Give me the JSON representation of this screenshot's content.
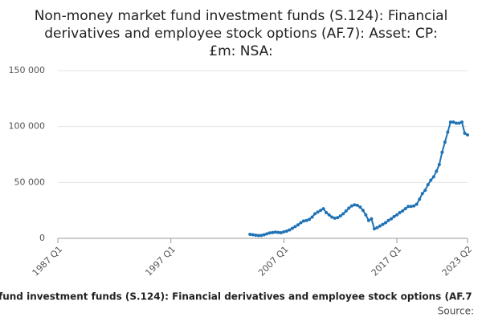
{
  "chart_data": {
    "type": "line",
    "title": [
      "Non-money market fund investment funds (S.124): Financial",
      "derivatives and employee stock options (AF.7): Asset: CP:",
      "£m: NSA:"
    ],
    "x_label": "fund investment funds (S.124): Financial derivatives and employee stock options (AF.7",
    "source": "Source:",
    "categories": [
      "1987 Q1",
      null,
      null,
      null,
      null,
      null,
      null,
      null,
      null,
      null,
      null,
      null,
      null,
      null,
      null,
      null,
      null,
      null,
      null,
      null,
      null,
      null,
      null,
      null,
      null,
      null,
      null,
      null,
      null,
      null,
      null,
      null,
      null,
      null,
      null,
      null,
      null,
      null,
      null,
      null,
      "1997 Q1",
      null,
      null,
      null,
      null,
      null,
      null,
      null,
      null,
      null,
      null,
      null,
      null,
      null,
      null,
      null,
      null,
      null,
      null,
      null,
      null,
      null,
      null,
      null,
      null,
      null,
      null,
      null,
      null,
      null,
      null,
      null,
      null,
      null,
      null,
      null,
      null,
      null,
      null,
      null,
      "2007 Q1",
      null,
      null,
      null,
      null,
      null,
      null,
      null,
      null,
      null,
      null,
      null,
      null,
      null,
      null,
      null,
      null,
      null,
      null,
      null,
      null,
      null,
      null,
      null,
      null,
      null,
      null,
      null,
      null,
      null,
      null,
      null,
      null,
      null,
      null,
      null,
      null,
      null,
      null,
      null,
      "2017 Q1",
      null,
      null,
      null,
      null,
      null,
      null,
      null,
      null,
      null,
      null,
      null,
      null,
      null,
      null,
      null,
      null,
      null,
      null,
      null,
      null,
      null,
      null,
      null,
      null,
      "2023 Q2"
    ],
    "values": [
      null,
      null,
      null,
      null,
      null,
      null,
      null,
      null,
      null,
      null,
      null,
      null,
      null,
      null,
      null,
      null,
      null,
      null,
      null,
      null,
      null,
      null,
      null,
      null,
      null,
      null,
      null,
      null,
      null,
      null,
      null,
      null,
      null,
      null,
      null,
      null,
      null,
      null,
      null,
      null,
      null,
      null,
      null,
      null,
      null,
      null,
      null,
      null,
      null,
      null,
      null,
      null,
      null,
      null,
      null,
      null,
      null,
      null,
      null,
      null,
      null,
      null,
      null,
      null,
      null,
      null,
      null,
      null,
      3600,
      3200,
      2800,
      2500,
      2600,
      3200,
      4000,
      4800,
      5200,
      5600,
      5300,
      5000,
      5800,
      6500,
      7500,
      9000,
      10500,
      12000,
      14000,
      15500,
      16000,
      17000,
      19000,
      22000,
      23500,
      25000,
      26500,
      23000,
      21000,
      19000,
      18000,
      18500,
      20000,
      22000,
      24500,
      27000,
      29000,
      30000,
      29500,
      28000,
      25000,
      21000,
      16000,
      17500,
      8500,
      9500,
      11000,
      12500,
      14000,
      16000,
      17500,
      19500,
      21000,
      23000,
      24500,
      26500,
      28500,
      28500,
      29000,
      30500,
      35000,
      40000,
      43000,
      48000,
      52000,
      55000,
      60000,
      66000,
      77000,
      86000,
      95000,
      104000,
      104000,
      103000,
      103000,
      104000,
      94000,
      92500
    ],
    "color": "#1f72b5",
    "ylim": [
      0,
      150000
    ],
    "yticks": [
      0,
      {
        "value": 50000,
        "label": "50 000"
      },
      {
        "value": 100000,
        "label": "100 000"
      },
      {
        "value": 150000,
        "label": "150 000"
      }
    ],
    "grid": true
  }
}
